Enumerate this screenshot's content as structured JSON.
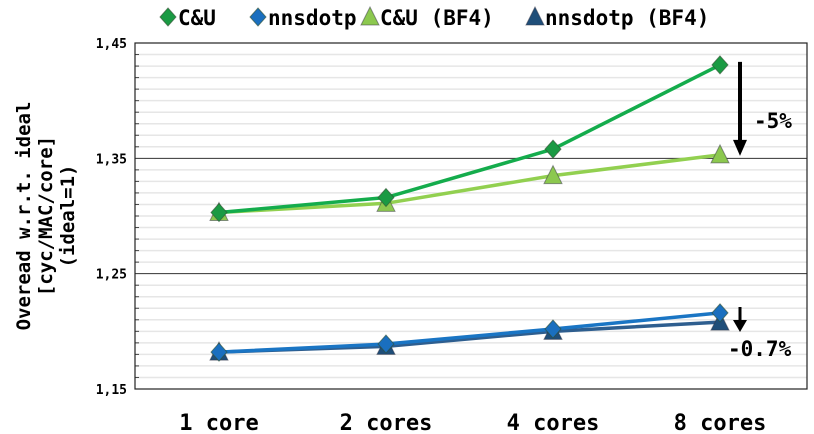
{
  "chart_data": {
    "type": "line",
    "categories": [
      "1 core",
      "2 cores",
      "4 cores",
      "8 cores"
    ],
    "ylabel": [
      "Overead w.r.t. ideal",
      "[cyc/MAC/core]",
      "(ideal=1)"
    ],
    "ylim": [
      1.15,
      1.45
    ],
    "yticks": [
      "1,15",
      "1,25",
      "1,35",
      "1,45"
    ],
    "ytick_values": [
      1.15,
      1.25,
      1.35,
      1.45
    ],
    "grid": "major lines at 1.25 and 1.35, minor light lines every 0.01",
    "legend_position": "top",
    "series": [
      {
        "name": "C&U",
        "marker": "diamond",
        "color": "#14ac4c",
        "marker_color": "#1a9a43",
        "values": [
          1.303,
          1.316,
          1.358,
          1.431
        ]
      },
      {
        "name": "nnsdotp",
        "marker": "diamond",
        "color": "#1a75c4",
        "marker_color": "#1a6fbf",
        "values": [
          1.182,
          1.189,
          1.202,
          1.216
        ]
      },
      {
        "name": "C&U (BF4)",
        "marker": "triangle",
        "color": "#92d050",
        "marker_color": "#8cc84f",
        "values": [
          1.303,
          1.311,
          1.335,
          1.353
        ]
      },
      {
        "name": "nnsdotp (BF4)",
        "marker": "triangle",
        "color": "#2e5e8f",
        "marker_color": "#1f4e79",
        "values": [
          1.182,
          1.187,
          1.2,
          1.208
        ]
      }
    ],
    "annotations": [
      {
        "text": "-5%",
        "category": "8 cores",
        "from": 1.431,
        "to": 1.353
      },
      {
        "text": "-0.7%",
        "category": "8 cores",
        "from": 1.216,
        "to": 1.208
      }
    ]
  }
}
